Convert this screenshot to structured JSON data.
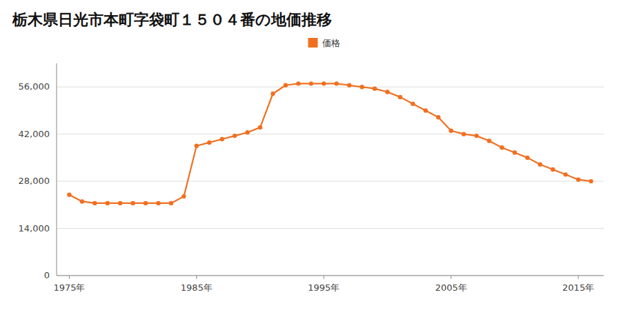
{
  "chart_data": {
    "type": "line",
    "title": "栃木県日光市本町字袋町１５０４番の地価推移",
    "x": [
      1975,
      1976,
      1977,
      1978,
      1979,
      1980,
      1981,
      1982,
      1983,
      1984,
      1985,
      1986,
      1987,
      1988,
      1989,
      1990,
      1991,
      1992,
      1993,
      1994,
      1995,
      1996,
      1997,
      1998,
      1999,
      2000,
      2001,
      2002,
      2003,
      2004,
      2005,
      2006,
      2007,
      2008,
      2009,
      2010,
      2011,
      2012,
      2013,
      2014,
      2015,
      2016
    ],
    "series": [
      {
        "name": "価格",
        "color": "#f07020",
        "marker": "circle",
        "line_style": "solid",
        "values": [
          24000,
          22000,
          21500,
          21500,
          21500,
          21500,
          21500,
          21500,
          21500,
          23500,
          38500,
          39500,
          40500,
          41500,
          42500,
          44000,
          54000,
          56500,
          57000,
          57000,
          57000,
          57000,
          56500,
          56000,
          55500,
          54500,
          53000,
          51000,
          49000,
          47000,
          43000,
          42000,
          41500,
          40000,
          38000,
          36500,
          35000,
          33000,
          31500,
          30000,
          28500,
          28000
        ]
      }
    ],
    "xlim": [
      1974,
      2017
    ],
    "xticks": [
      {
        "value": 1975,
        "label": "1975年"
      },
      {
        "value": 1985,
        "label": "1985年"
      },
      {
        "value": 1995,
        "label": "1995年"
      },
      {
        "value": 2005,
        "label": "2005年"
      },
      {
        "value": 2015,
        "label": "2015年"
      }
    ],
    "ylim": [
      0,
      63000
    ],
    "yticks": [
      0,
      {
        "value": 14000,
        "label": "14,000"
      },
      {
        "value": 28000,
        "label": "28,000"
      },
      {
        "value": 42000,
        "label": "42,000"
      },
      {
        "value": 56000,
        "label": "56,000"
      }
    ],
    "grid": true,
    "legend": "top"
  }
}
